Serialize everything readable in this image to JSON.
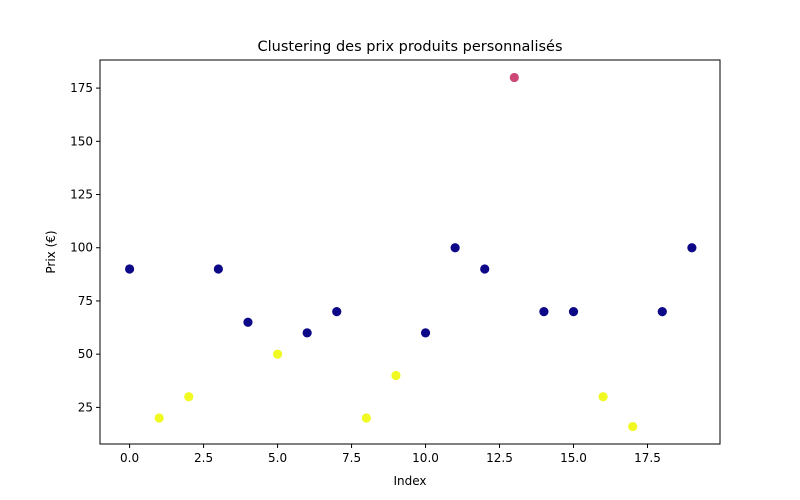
{
  "chart_data": {
    "type": "scatter",
    "title": "Clustering des prix produits personnalisés",
    "xlabel": "Index",
    "ylabel": "Prix (€)",
    "xlim": [
      -1,
      19.95
    ],
    "ylim": [
      7.8,
      188.2
    ],
    "grid": false,
    "xticks": [
      0.0,
      2.5,
      5.0,
      7.5,
      10.0,
      12.5,
      15.0,
      17.5
    ],
    "xtick_labels": [
      "0.0",
      "2.5",
      "5.0",
      "7.5",
      "10.0",
      "12.5",
      "15.0",
      "17.5"
    ],
    "yticks": [
      25,
      50,
      75,
      100,
      125,
      150,
      175
    ],
    "ytick_labels": [
      "25",
      "50",
      "75",
      "100",
      "125",
      "150",
      "175"
    ],
    "cluster_colors": {
      "0": "#0d0887",
      "1": "#cc4778",
      "2": "#f0f921"
    },
    "points": [
      {
        "x": 0,
        "y": 90,
        "cluster": 0
      },
      {
        "x": 1,
        "y": 20,
        "cluster": 2
      },
      {
        "x": 2,
        "y": 30,
        "cluster": 2
      },
      {
        "x": 3,
        "y": 90,
        "cluster": 0
      },
      {
        "x": 4,
        "y": 65,
        "cluster": 0
      },
      {
        "x": 5,
        "y": 50,
        "cluster": 2
      },
      {
        "x": 6,
        "y": 60,
        "cluster": 0
      },
      {
        "x": 7,
        "y": 70,
        "cluster": 0
      },
      {
        "x": 8,
        "y": 20,
        "cluster": 2
      },
      {
        "x": 9,
        "y": 40,
        "cluster": 2
      },
      {
        "x": 10,
        "y": 60,
        "cluster": 0
      },
      {
        "x": 11,
        "y": 100,
        "cluster": 0
      },
      {
        "x": 12,
        "y": 90,
        "cluster": 0
      },
      {
        "x": 13,
        "y": 180,
        "cluster": 1
      },
      {
        "x": 14,
        "y": 70,
        "cluster": 0
      },
      {
        "x": 15,
        "y": 70,
        "cluster": 0
      },
      {
        "x": 16,
        "y": 30,
        "cluster": 2
      },
      {
        "x": 17,
        "y": 16,
        "cluster": 2
      },
      {
        "x": 18,
        "y": 70,
        "cluster": 0
      },
      {
        "x": 19,
        "y": 100,
        "cluster": 0
      }
    ]
  }
}
